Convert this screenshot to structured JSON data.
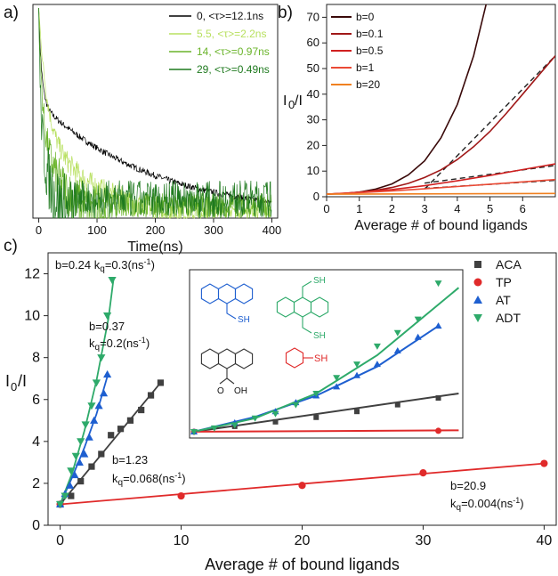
{
  "chart_data": [
    {
      "panel": "a)",
      "type": "line",
      "xlabel": "Time(ns)",
      "ylabel": "",
      "xlim": [
        -10,
        410
      ],
      "xticks": [
        0,
        100,
        200,
        300,
        400
      ],
      "legend_position": "top-right",
      "series": [
        {
          "name": "0, <τ>=12.1ns",
          "color": "#000000",
          "tau": 12.1
        },
        {
          "name": "5.5, <τ>=2.2ns",
          "color": "#b8e060",
          "tau": 2.2
        },
        {
          "name": "14, <τ>=0.97ns",
          "color": "#6ab42a",
          "tau": 0.97
        },
        {
          "name": "29, <τ>=0.49ns",
          "color": "#1f7a1f",
          "tau": 0.49
        }
      ]
    },
    {
      "panel": "b)",
      "type": "line",
      "xlabel": "Average # of bound ligands",
      "ylabel": "I0/I",
      "xlim": [
        0,
        7
      ],
      "ylim": [
        0,
        75
      ],
      "xticks": [
        0,
        1,
        2,
        3,
        4,
        5,
        6
      ],
      "yticks": [
        0,
        10,
        20,
        30,
        40,
        50,
        60,
        70
      ],
      "legend_position": "top-left",
      "series": [
        {
          "name": "b=0",
          "color": "#3a0a0a",
          "points": [
            [
              0,
              1
            ],
            [
              0.5,
              1.2
            ],
            [
              1,
              1.8
            ],
            [
              1.5,
              3
            ],
            [
              2,
              5
            ],
            [
              2.5,
              8.5
            ],
            [
              3,
              14
            ],
            [
              3.5,
              23
            ],
            [
              4,
              36
            ],
            [
              4.5,
              55
            ],
            [
              4.9,
              76
            ]
          ]
        },
        {
          "name": "b=0.1",
          "color": "#a01818",
          "points": [
            [
              0,
              1
            ],
            [
              0.5,
              1.3
            ],
            [
              1,
              1.8
            ],
            [
              1.5,
              2.5
            ],
            [
              2,
              3.6
            ],
            [
              2.5,
              5.2
            ],
            [
              3,
              7.5
            ],
            [
              3.5,
              10.5
            ],
            [
              4,
              14.5
            ],
            [
              4.5,
              19.5
            ],
            [
              5,
              25.5
            ],
            [
              5.5,
              32.5
            ],
            [
              6,
              40
            ],
            [
              6.5,
              47.5
            ],
            [
              7,
              55
            ]
          ]
        },
        {
          "name": "b=0.5",
          "color": "#d02020",
          "points": [
            [
              0,
              1
            ],
            [
              1,
              1.7
            ],
            [
              2,
              2.8
            ],
            [
              3,
              4.3
            ],
            [
              4,
              6.2
            ],
            [
              5,
              8.3
            ],
            [
              6,
              10.6
            ],
            [
              7,
              12.8
            ]
          ]
        },
        {
          "name": "b=1",
          "color": "#ea4a35",
          "points": [
            [
              0,
              1
            ],
            [
              1,
              1.6
            ],
            [
              2,
              2.3
            ],
            [
              3,
              3.1
            ],
            [
              4,
              4
            ],
            [
              5,
              4.9
            ],
            [
              6,
              5.8
            ],
            [
              7,
              6.7
            ]
          ]
        },
        {
          "name": "b=20",
          "color": "#f08020",
          "points": [
            [
              0,
              1
            ],
            [
              7,
              1.3
            ]
          ]
        }
      ],
      "dashed_fits": [
        {
          "points": [
            [
              3,
              3
            ],
            [
              7,
              55
            ]
          ]
        },
        {
          "points": [
            [
              3,
              5.3
            ],
            [
              7,
              12.2
            ]
          ]
        },
        {
          "points": [
            [
              3,
              3.3
            ],
            [
              7,
              6.4
            ]
          ]
        }
      ]
    },
    {
      "panel": "c)",
      "type": "scatter",
      "xlabel": "Average # of bound ligands",
      "ylabel": "I0/I",
      "xlim": [
        -1,
        41
      ],
      "ylim": [
        0,
        13
      ],
      "xticks": [
        0,
        10,
        20,
        30,
        40
      ],
      "yticks": [
        0,
        2,
        4,
        6,
        8,
        10,
        12
      ],
      "legend_position": "top-right",
      "series": [
        {
          "name": "ACA",
          "color": "#404040",
          "marker": "square",
          "points": [
            [
              0,
              1
            ],
            [
              0.9,
              1.4
            ],
            [
              1.7,
              2.1
            ],
            [
              2.6,
              2.8
            ],
            [
              3.4,
              3.4
            ],
            [
              4.2,
              4.3
            ],
            [
              5,
              4.6
            ],
            [
              5.8,
              5.0
            ],
            [
              6.7,
              5.5
            ],
            [
              7.5,
              6.2
            ],
            [
              8.3,
              6.8
            ]
          ]
        },
        {
          "name": "TP",
          "color": "#e02a2a",
          "marker": "circle",
          "points": [
            [
              0,
              1
            ],
            [
              10,
              1.4
            ],
            [
              20,
              1.9
            ],
            [
              30,
              2.5
            ],
            [
              40,
              2.95
            ]
          ]
        },
        {
          "name": "AT",
          "color": "#1e5fd0",
          "marker": "triangle-up",
          "points": [
            [
              0,
              1
            ],
            [
              0.4,
              1.5
            ],
            [
              0.8,
              1.9
            ],
            [
              1.2,
              2.4
            ],
            [
              1.6,
              3.0
            ],
            [
              2,
              3.4
            ],
            [
              2.4,
              4.2
            ],
            [
              2.8,
              5.0
            ],
            [
              3.2,
              5.7
            ],
            [
              3.6,
              6.3
            ],
            [
              3.9,
              7.2
            ]
          ]
        },
        {
          "name": "ADT",
          "color": "#2eaa6a",
          "marker": "triangle-down",
          "points": [
            [
              0,
              1
            ],
            [
              0.4,
              1.4
            ],
            [
              0.9,
              2.6
            ],
            [
              1.3,
              3.3
            ],
            [
              1.7,
              4.0
            ],
            [
              2.1,
              4.8
            ],
            [
              2.6,
              5.7
            ],
            [
              3.0,
              6.8
            ],
            [
              3.4,
              8.0
            ],
            [
              3.9,
              10.0
            ],
            [
              4.3,
              11.7
            ]
          ]
        }
      ],
      "fits": [
        {
          "color": "#404040",
          "points": [
            [
              0,
              1
            ],
            [
              8.3,
              6.8
            ]
          ]
        },
        {
          "color": "#e02a2a",
          "points": [
            [
              0,
              1
            ],
            [
              40,
              2.95
            ]
          ]
        },
        {
          "color": "#1e5fd0",
          "points": [
            [
              0,
              1
            ],
            [
              1,
              2.3
            ],
            [
              2,
              3.7
            ],
            [
              3,
              5.3
            ],
            [
              3.9,
              7.1
            ]
          ]
        },
        {
          "color": "#2eaa6a",
          "points": [
            [
              0,
              1
            ],
            [
              1,
              2.5
            ],
            [
              2,
              4.5
            ],
            [
              3,
              6.9
            ],
            [
              4,
              9.9
            ],
            [
              4.4,
              11.7
            ]
          ]
        }
      ],
      "annotations": {
        "adt": "b=0.24 k",
        "adt_kq": "=0.3(ns",
        "at_b": "b=0.37",
        "at_kq": "k",
        "at_kq_val": "=0.2(ns",
        "aca_b": "b=1.23",
        "aca_kq": "k",
        "aca_kq_val": "=0.068(ns",
        "tp_b": "b=20.9",
        "tp_kq": "k",
        "tp_kq_val": "=0.004(ns"
      },
      "inset": {
        "series": [
          {
            "color": "#404040",
            "marker": "square",
            "points": [
              [
                0,
                1
              ],
              [
                2,
                1.12
              ],
              [
                4,
                1.22
              ],
              [
                6,
                1.32
              ],
              [
                8,
                1.45
              ],
              [
                10,
                1.6
              ],
              [
                12,
                1.75
              ]
            ]
          },
          {
            "color": "#e02a2a",
            "marker": "circle",
            "points": [
              [
                0,
                1
              ],
              [
                12,
                1.02
              ]
            ]
          },
          {
            "color": "#1e5fd0",
            "marker": "triangle-up",
            "points": [
              [
                0,
                1
              ],
              [
                2,
                1.2
              ],
              [
                4,
                1.45
              ],
              [
                5,
                1.65
              ],
              [
                6,
                1.8
              ],
              [
                7,
                2.0
              ],
              [
                8,
                2.25
              ],
              [
                9,
                2.5
              ],
              [
                10,
                2.8
              ],
              [
                11,
                3.1
              ],
              [
                12,
                3.35
              ]
            ]
          },
          {
            "color": "#2eaa6a",
            "marker": "triangle-down",
            "points": [
              [
                0,
                1
              ],
              [
                1,
                1.08
              ],
              [
                2,
                1.15
              ],
              [
                3,
                1.3
              ],
              [
                4,
                1.4
              ],
              [
                5,
                1.6
              ],
              [
                6,
                1.85
              ],
              [
                7,
                2.2
              ],
              [
                8,
                2.5
              ],
              [
                9,
                2.9
              ],
              [
                10,
                3.2
              ],
              [
                11,
                3.5
              ],
              [
                12,
                4.3
              ]
            ]
          }
        ],
        "fits": [
          {
            "color": "#404040",
            "points": [
              [
                0,
                1
              ],
              [
                13,
                1.85
              ]
            ]
          },
          {
            "color": "#e02a2a",
            "points": [
              [
                0,
                1
              ],
              [
                13,
                1.03
              ]
            ]
          },
          {
            "color": "#1e5fd0",
            "points": [
              [
                0,
                1
              ],
              [
                3,
                1.33
              ],
              [
                6,
                1.8
              ],
              [
                9,
                2.45
              ],
              [
                12,
                3.35
              ]
            ]
          },
          {
            "color": "#2eaa6a",
            "points": [
              [
                0,
                1
              ],
              [
                3,
                1.3
              ],
              [
                6,
                1.85
              ],
              [
                9,
                2.7
              ],
              [
                13,
                4.2
              ]
            ]
          }
        ],
        "molecule_labels": {
          "aca_oh": "OH",
          "aca_o": "O",
          "at_sh": "SH",
          "adt_sh_top": "SH",
          "adt_sh_bottom": "SH",
          "tp_sh": "SH"
        }
      }
    }
  ],
  "text": {
    "ylabel_main": "I",
    "ylabel_sub": "0",
    "ylabel_tail": "/I",
    "sup_minus1": "-1",
    "close_paren": ")",
    "q_sub": "q"
  }
}
